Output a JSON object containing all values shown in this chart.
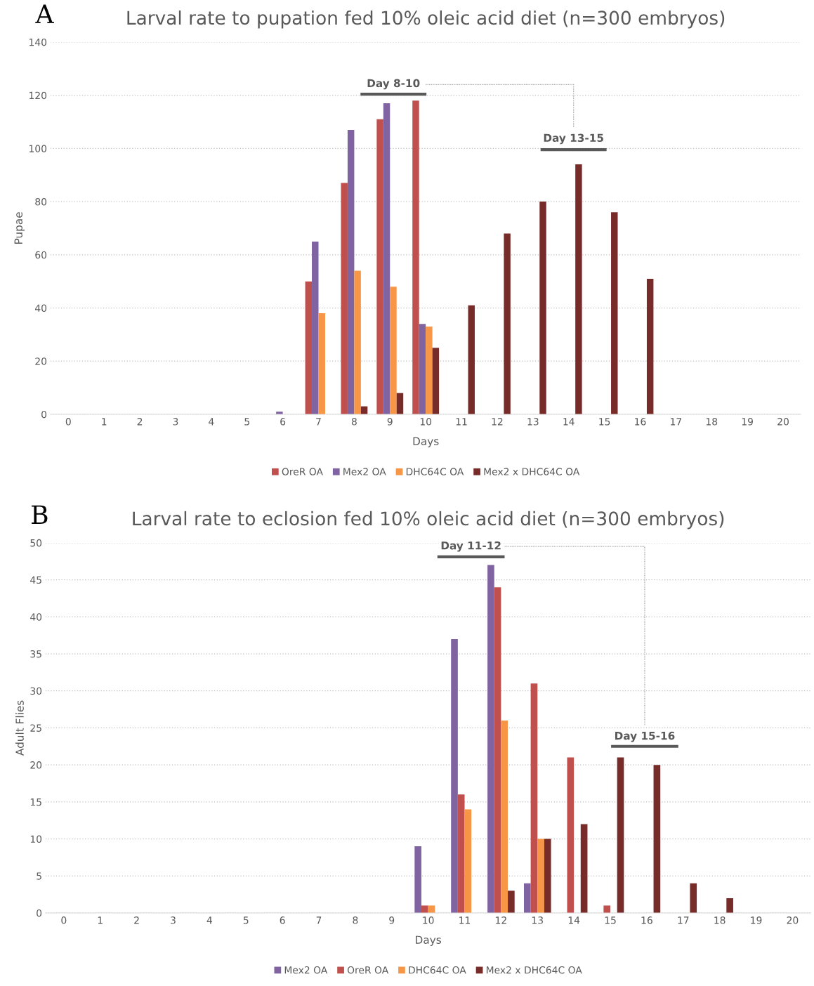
{
  "chart_data": [
    {
      "type": "bar",
      "title": "Larval rate to pupation fed 10% oleic acid diet (n=300 embryos)",
      "xlabel": "Days",
      "ylabel": "Pupae",
      "categories": [
        "0",
        "1",
        "2",
        "3",
        "4",
        "5",
        "6",
        "7",
        "8",
        "9",
        "10",
        "11",
        "12",
        "13",
        "14",
        "15",
        "16",
        "17",
        "18",
        "19",
        "20"
      ],
      "series": [
        {
          "name": "OreR OA",
          "color": "#c0504d",
          "values": [
            0,
            0,
            0,
            0,
            0,
            0,
            0,
            50,
            87,
            111,
            118,
            0,
            0,
            0,
            0,
            0,
            0,
            0,
            0,
            0,
            0
          ]
        },
        {
          "name": "Mex2 OA",
          "color": "#8064a2",
          "values": [
            0,
            0,
            0,
            0,
            0,
            0,
            1,
            65,
            107,
            117,
            34,
            0,
            0,
            0,
            0,
            0,
            0,
            0,
            0,
            0,
            0
          ]
        },
        {
          "name": "DHC64C OA",
          "color": "#f79646",
          "values": [
            0,
            0,
            0,
            0,
            0,
            0,
            0,
            38,
            54,
            48,
            33,
            0,
            0,
            0,
            0,
            0,
            0,
            0,
            0,
            0,
            0
          ]
        },
        {
          "name": "Mex2 x DHC64C OA",
          "color": "#772c2a",
          "values": [
            0,
            0,
            0,
            0,
            0,
            0,
            0,
            0,
            3,
            8,
            25,
            41,
            68,
            80,
            94,
            76,
            51,
            0,
            0,
            0,
            0
          ]
        }
      ],
      "ylim": [
        0,
        140
      ],
      "yticks": [
        0,
        20,
        40,
        60,
        80,
        100,
        120,
        140
      ],
      "grid": "y",
      "legend": "bottom",
      "annotations": [
        "A",
        "Day 8-10",
        "Day 13-15"
      ]
    },
    {
      "type": "bar",
      "title": "Larval rate to eclosion fed 10% oleic acid diet (n=300 embryos)",
      "xlabel": "Days",
      "ylabel": "Adult Flies",
      "categories": [
        "0",
        "1",
        "2",
        "3",
        "4",
        "5",
        "6",
        "7",
        "8",
        "9",
        "10",
        "11",
        "12",
        "13",
        "14",
        "15",
        "16",
        "17",
        "18",
        "19",
        "20"
      ],
      "series": [
        {
          "name": "Mex2 OA",
          "color": "#8064a2",
          "values": [
            0,
            0,
            0,
            0,
            0,
            0,
            0,
            0,
            0,
            0,
            9,
            37,
            47,
            4,
            0,
            0,
            0,
            0,
            0,
            0,
            0
          ]
        },
        {
          "name": "OreR OA",
          "color": "#c0504d",
          "values": [
            0,
            0,
            0,
            0,
            0,
            0,
            0,
            0,
            0,
            0,
            1,
            16,
            44,
            31,
            21,
            1,
            0,
            0,
            0,
            0,
            0
          ]
        },
        {
          "name": "DHC64C OA",
          "color": "#f79646",
          "values": [
            0,
            0,
            0,
            0,
            0,
            0,
            0,
            0,
            0,
            0,
            1,
            14,
            26,
            10,
            0,
            0,
            0,
            0,
            0,
            0,
            0
          ]
        },
        {
          "name": "Mex2 x DHC64C OA",
          "color": "#772c2a",
          "values": [
            0,
            0,
            0,
            0,
            0,
            0,
            0,
            0,
            0,
            0,
            0,
            0,
            3,
            10,
            12,
            21,
            20,
            4,
            2,
            0,
            0
          ]
        }
      ],
      "ylim": [
        0,
        50
      ],
      "yticks": [
        0,
        5,
        10,
        15,
        20,
        25,
        30,
        35,
        40,
        45,
        50
      ],
      "grid": "y",
      "legend": "bottom",
      "annotations": [
        "B",
        "Day 11-12",
        "Day 15-16"
      ]
    }
  ]
}
